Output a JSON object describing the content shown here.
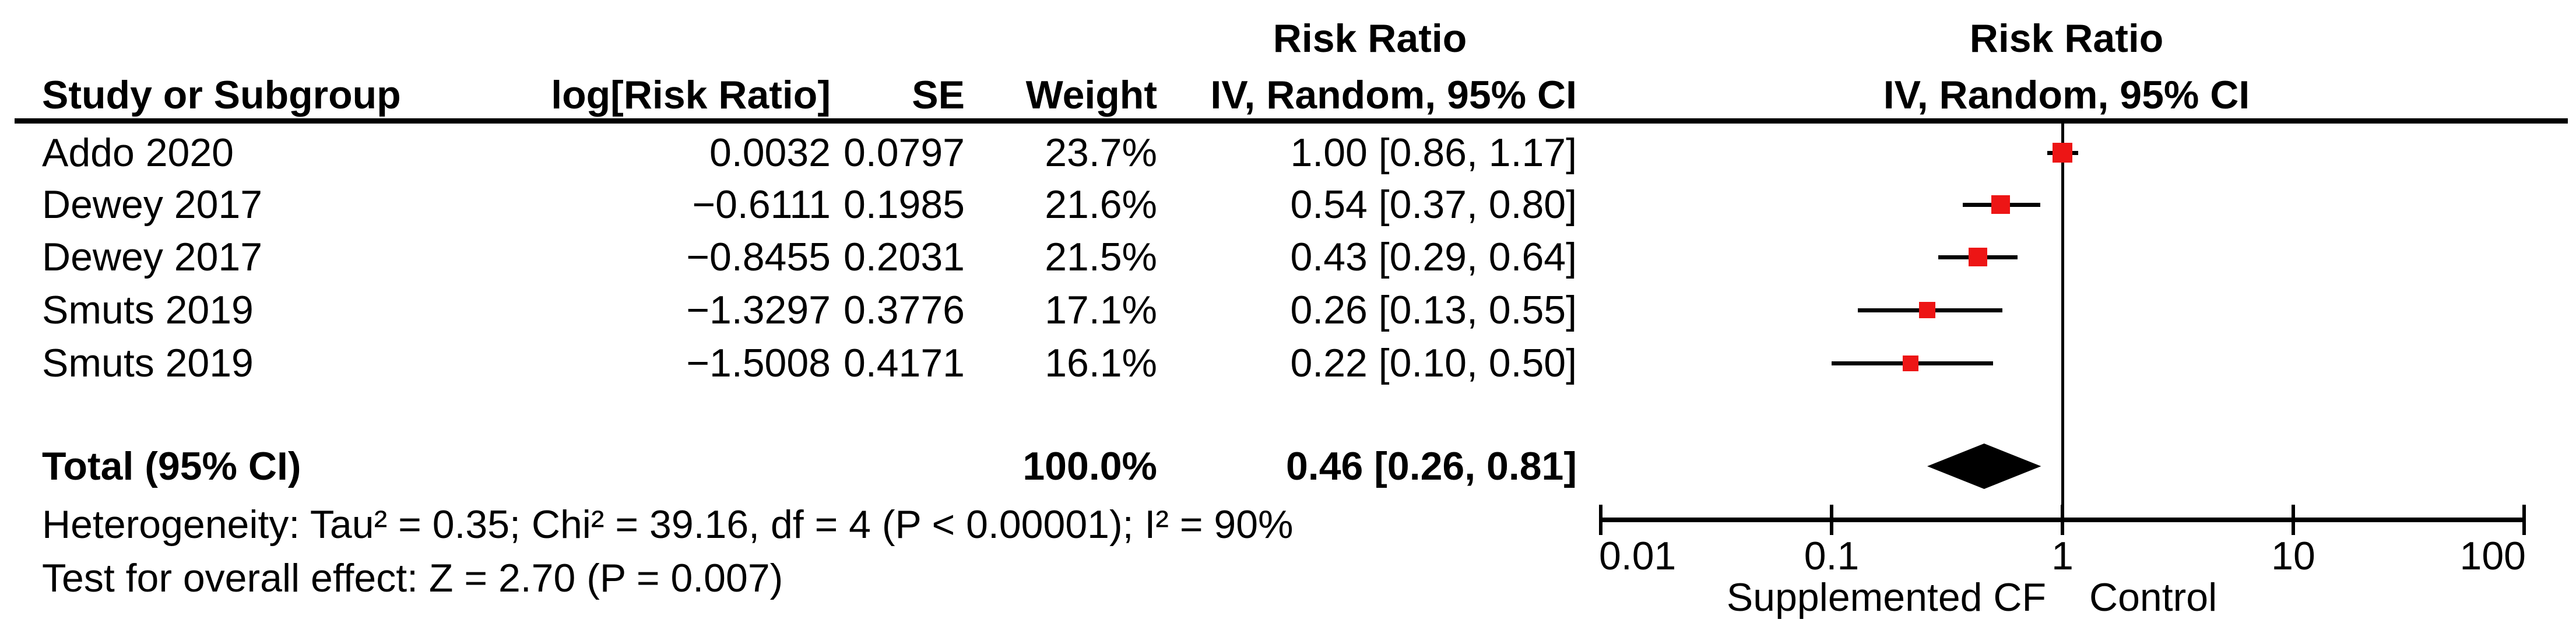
{
  "chart_data": {
    "type": "forest",
    "effect_title": "Risk Ratio",
    "columns": {
      "study": "Study or Subgroup",
      "log_rr": "log[Risk Ratio]",
      "se": "SE",
      "weight": "Weight",
      "ci": "IV, Random, 95% CI"
    },
    "plot_header_line1": "Risk Ratio",
    "plot_header_line2": "IV, Random, 95% CI",
    "x_scale": "log10",
    "x_range": [
      0.01,
      100
    ],
    "x_ticks": [
      0.01,
      0.1,
      1,
      10,
      100
    ],
    "x_tick_labels": [
      "0.01",
      "0.1",
      "1",
      "10",
      "100"
    ],
    "null_line_value": 1,
    "footer_left_label": "Supplemented CF",
    "footer_right_label": "Control",
    "marker_color": "#ed1515",
    "diamond_color": "#000000",
    "studies": [
      {
        "name": "Addo 2020",
        "log_rr": "0.0032",
        "se": "0.0797",
        "weight": "23.7%",
        "weight_pct": 23.7,
        "rr": 1.0,
        "ci_low": 0.86,
        "ci_high": 1.17,
        "ci_text": "1.00 [0.86, 1.17]"
      },
      {
        "name": "Dewey 2017",
        "log_rr": "−0.6111",
        "se": "0.1985",
        "weight": "21.6%",
        "weight_pct": 21.6,
        "rr": 0.54,
        "ci_low": 0.37,
        "ci_high": 0.8,
        "ci_text": "0.54 [0.37, 0.80]"
      },
      {
        "name": "Dewey 2017",
        "log_rr": "−0.8455",
        "se": "0.2031",
        "weight": "21.5%",
        "weight_pct": 21.5,
        "rr": 0.43,
        "ci_low": 0.29,
        "ci_high": 0.64,
        "ci_text": "0.43 [0.29, 0.64]"
      },
      {
        "name": "Smuts 2019",
        "log_rr": "−1.3297",
        "se": "0.3776",
        "weight": "17.1%",
        "weight_pct": 17.1,
        "rr": 0.26,
        "ci_low": 0.13,
        "ci_high": 0.55,
        "ci_text": "0.26 [0.13, 0.55]"
      },
      {
        "name": "Smuts 2019",
        "log_rr": "−1.5008",
        "se": "0.4171",
        "weight": "16.1%",
        "weight_pct": 16.1,
        "rr": 0.22,
        "ci_low": 0.1,
        "ci_high": 0.5,
        "ci_text": "0.22 [0.10, 0.50]"
      }
    ],
    "total": {
      "label": "Total (95% CI)",
      "weight": "100.0%",
      "rr": 0.46,
      "ci_low": 0.26,
      "ci_high": 0.81,
      "ci_text": "0.46 [0.26, 0.81]"
    },
    "heterogeneity": "Heterogeneity: Tau² = 0.35; Chi² = 39.16, df = 4 (P < 0.00001); I² = 90%",
    "overall_effect": "Test for overall effect: Z = 2.70 (P = 0.007)"
  }
}
